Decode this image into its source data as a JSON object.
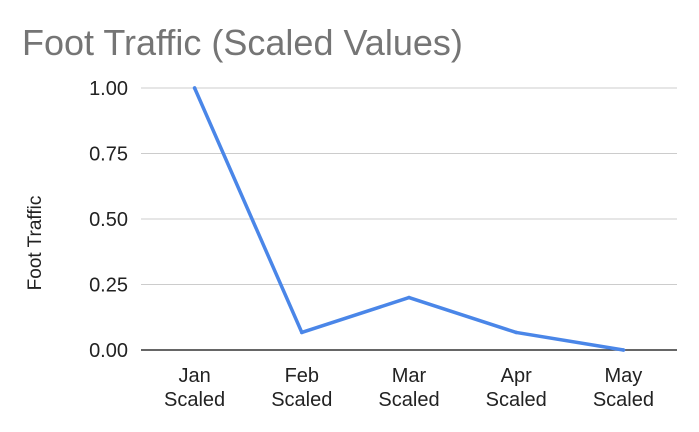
{
  "chart_data": {
    "type": "line",
    "title": "Foot Traffic (Scaled Values)",
    "xlabel": "",
    "ylabel": "Foot Traffic",
    "categories": [
      [
        "Jan",
        "Scaled"
      ],
      [
        "Feb",
        "Scaled"
      ],
      [
        "Mar",
        "Scaled"
      ],
      [
        "Apr",
        "Scaled"
      ],
      [
        "May",
        "Scaled"
      ]
    ],
    "series": [
      {
        "values": [
          1.0,
          0.067,
          0.2,
          0.067,
          0.0
        ]
      }
    ],
    "ylim": [
      0,
      1
    ],
    "yticks": [
      "0.00",
      "0.25",
      "0.50",
      "0.75",
      "1.00"
    ],
    "grid": true,
    "legend": "none",
    "colors": {
      "line": "#4a86e8",
      "grid": "#cccccc",
      "axis": "#333333",
      "title": "#757575",
      "text": "#222222"
    }
  }
}
